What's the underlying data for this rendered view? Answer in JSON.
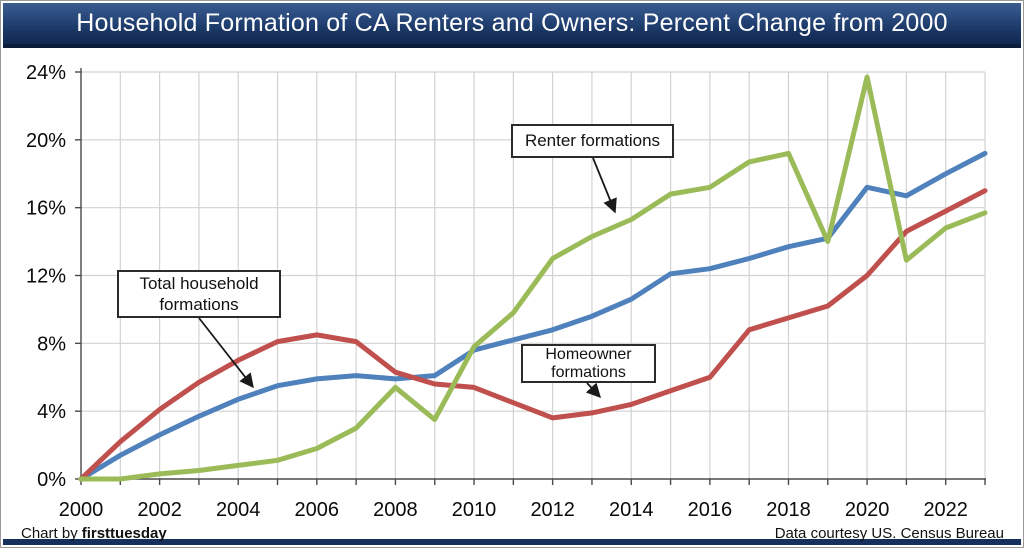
{
  "header": {
    "title": "Household Formation of CA Renters and Owners: Percent Change from 2000"
  },
  "annotations": {
    "total_household": {
      "line1": "Total household",
      "line2": "formations"
    },
    "renter": {
      "line1": "Renter formations",
      "line2": ""
    },
    "homeowner": {
      "line1": "Homeowner",
      "line2": "formations"
    }
  },
  "footer": {
    "credit_prefix": "Chart by",
    "credit_brand": "firsttuesday",
    "source": "Data courtesy US. Census Bureau"
  },
  "chart_data": {
    "type": "line",
    "title": "Household Formation of CA Renters and Owners: Percent Change from 2000",
    "xlabel": "",
    "ylabel": "",
    "grid": true,
    "legend": "callout-labels",
    "ylim": [
      0,
      24
    ],
    "ytick_step": 4,
    "x": [
      2000,
      2001,
      2002,
      2003,
      2004,
      2005,
      2006,
      2007,
      2008,
      2009,
      2010,
      2011,
      2012,
      2013,
      2014,
      2015,
      2016,
      2017,
      2018,
      2019,
      2020,
      2021,
      2022,
      2023
    ],
    "xtick_labels": [
      "2000",
      "2002",
      "2004",
      "2006",
      "2008",
      "2010",
      "2012",
      "2014",
      "2016",
      "2018",
      "2020",
      "2022"
    ],
    "ytick_labels": [
      "0%",
      "4%",
      "8%",
      "12%",
      "16%",
      "20%",
      "24%"
    ],
    "series": [
      {
        "name": "Total household formations",
        "color": "#4F81BD",
        "values": [
          0,
          1.4,
          2.6,
          3.7,
          4.7,
          5.5,
          5.9,
          6.1,
          5.9,
          6.1,
          7.6,
          8.2,
          8.8,
          9.6,
          10.6,
          12.1,
          12.4,
          13.0,
          13.7,
          14.2,
          17.2,
          16.7,
          18.0,
          19.2
        ]
      },
      {
        "name": "Homeowner formations",
        "color": "#C0504D",
        "values": [
          0,
          2.2,
          4.1,
          5.7,
          7.0,
          8.1,
          8.5,
          8.1,
          6.3,
          5.6,
          5.4,
          4.5,
          3.6,
          3.9,
          4.4,
          5.2,
          6.0,
          8.8,
          9.5,
          10.2,
          12.0,
          14.6,
          15.8,
          17.0
        ]
      },
      {
        "name": "Renter formations",
        "color": "#9BBB59",
        "values": [
          0,
          0.0,
          0.3,
          0.5,
          0.8,
          1.1,
          1.8,
          3.0,
          5.4,
          3.5,
          7.8,
          9.8,
          13.0,
          14.3,
          15.3,
          16.8,
          17.2,
          18.7,
          19.2,
          14.0,
          23.7,
          12.9,
          14.8,
          15.7
        ]
      }
    ]
  }
}
